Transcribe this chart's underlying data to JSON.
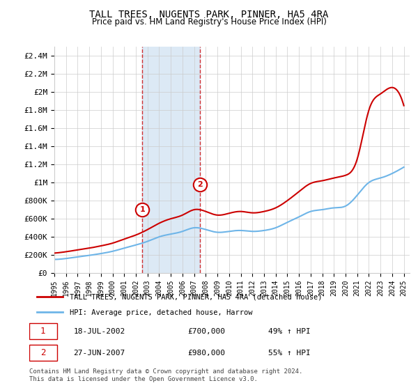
{
  "title": "TALL TREES, NUGENTS PARK, PINNER, HA5 4RA",
  "subtitle": "Price paid vs. HM Land Registry's House Price Index (HPI)",
  "legend_line1": "TALL TREES, NUGENTS PARK, PINNER, HA5 4RA (detached house)",
  "legend_line2": "HPI: Average price, detached house, Harrow",
  "marker1_date": "18-JUL-2002",
  "marker1_price": 700000,
  "marker1_hpi": "49% ↑ HPI",
  "marker2_date": "27-JUN-2007",
  "marker2_price": 980000,
  "marker2_hpi": "55% ↑ HPI",
  "footer": "Contains HM Land Registry data © Crown copyright and database right 2024.\nThis data is licensed under the Open Government Licence v3.0.",
  "hpi_color": "#6eb5e8",
  "price_color": "#cc0000",
  "marker_color": "#cc0000",
  "shaded_color": "#dce9f5",
  "ylim": [
    0,
    2500000
  ],
  "yticks": [
    0,
    200000,
    400000,
    600000,
    800000,
    1000000,
    1200000,
    1400000,
    1600000,
    1800000,
    2000000,
    2200000,
    2400000
  ],
  "xlim_start": 1995.0,
  "xlim_end": 2025.5,
  "years": [
    1995,
    1996,
    1997,
    1998,
    1999,
    2000,
    2001,
    2002,
    2003,
    2004,
    2005,
    2006,
    2007,
    2008,
    2009,
    2010,
    2011,
    2012,
    2013,
    2014,
    2015,
    2016,
    2017,
    2018,
    2019,
    2020,
    2021,
    2022,
    2023,
    2024,
    2025
  ],
  "hpi_values": [
    150000,
    160000,
    178000,
    195000,
    215000,
    240000,
    275000,
    310000,
    350000,
    400000,
    430000,
    460000,
    500000,
    480000,
    450000,
    460000,
    470000,
    460000,
    470000,
    500000,
    560000,
    620000,
    680000,
    700000,
    720000,
    740000,
    860000,
    1000000,
    1050000,
    1100000,
    1170000
  ],
  "price_values": [
    220000,
    235000,
    255000,
    275000,
    300000,
    330000,
    375000,
    420000,
    480000,
    550000,
    600000,
    640000,
    700000,
    680000,
    640000,
    660000,
    680000,
    665000,
    680000,
    720000,
    800000,
    900000,
    990000,
    1020000,
    1050000,
    1080000,
    1260000,
    1800000,
    1980000,
    2050000,
    1850000
  ],
  "marker1_x": 2002.54,
  "marker2_x": 2007.49
}
